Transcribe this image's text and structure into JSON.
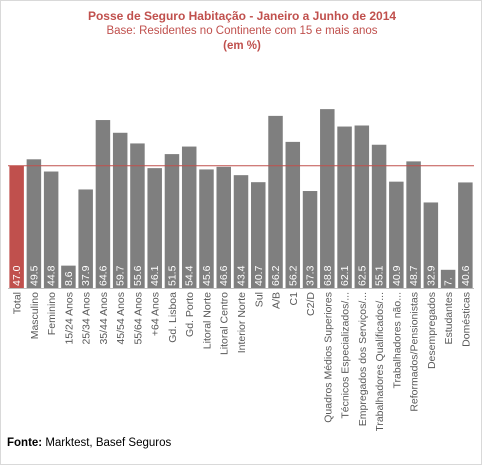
{
  "chart_data": {
    "type": "bar",
    "title": "Posse de Seguro Habitação - Janeiro a Junho de 2014",
    "subtitle": "Base: Residentes no Continente com 15 e mais anos",
    "unit": "(em %)",
    "categories": [
      "Total",
      "Masculino",
      "Feminino",
      "15/24 Anos",
      "25/34 Anos",
      "35/44 Anos",
      "45/54 Anos",
      "55/64 Anos",
      "+64 Anos",
      "Gd. Lisboa",
      "Gd. Porto",
      "Litoral Norte",
      "Litoral Centro",
      "Interior Norte",
      "Sul",
      "A/B",
      "C1",
      "C2/D",
      "Quadros Médios Superiores",
      "Técnicos Especializados/...",
      "Empregados dos Serviços/...",
      "Trabalhadores Qualificados/...",
      "Trabalhadores não...",
      "Reformados/Pensionistas",
      "Desempregados",
      "Estudantes",
      "Domésticas"
    ],
    "value_labels": [
      "47.0",
      "49.5",
      "44.8",
      "8.6",
      "37.9",
      "64.6",
      "59.7",
      "55.6",
      "46.1",
      "51.5",
      "54.4",
      "45.6",
      "46.6",
      "43.4",
      "40.7",
      "66.2",
      "56.2",
      "37.3",
      "68.8",
      "62.1",
      "62.5",
      "55.1",
      "40.9",
      "48.7",
      "32.9",
      "7.",
      "40.6"
    ],
    "values": [
      47.0,
      49.5,
      44.8,
      8.6,
      37.9,
      64.6,
      59.7,
      55.6,
      46.1,
      51.5,
      54.4,
      45.6,
      46.6,
      43.4,
      40.7,
      66.2,
      56.2,
      37.3,
      68.8,
      62.1,
      62.5,
      55.1,
      40.9,
      48.7,
      32.9,
      7.0,
      40.6
    ],
    "reference_line": 47.0,
    "highlight_index": 0,
    "ylim": [
      0,
      80
    ],
    "grid": false,
    "legend": "none"
  },
  "colors": {
    "title": "#c0504d",
    "highlight_bar": "#c0504d",
    "bar": "#7f7f7f",
    "reference_line": "#c0504d",
    "value_label": "#ffffff",
    "axis_label": "#595959"
  },
  "source": {
    "label": "Fonte:",
    "text": " Marktest, Basef Seguros"
  }
}
